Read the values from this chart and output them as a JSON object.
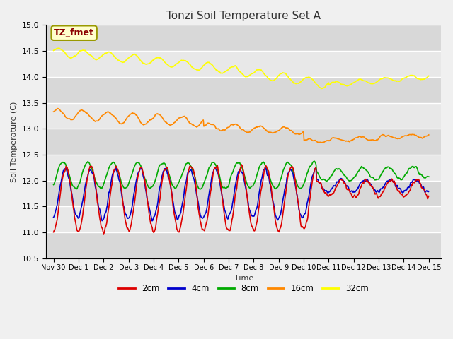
{
  "title": "Tonzi Soil Temperature Set A",
  "xlabel": "Time",
  "ylabel": "Soil Temperature (C)",
  "ylim": [
    10.5,
    15.0
  ],
  "xlim_days": 15.5,
  "background_color": "#f0f0f0",
  "plot_bg_color": "#e8e8e8",
  "annotation_label": "TZ_fmet",
  "annotation_bg": "#ffffcc",
  "annotation_border": "#999900",
  "annotation_text_color": "#8B0000",
  "tick_labels": [
    "Nov 30",
    "Dec 1",
    "Dec 2",
    "Dec 3",
    "Dec 4",
    "Dec 5",
    "Dec 6",
    "Dec 7",
    "Dec 8",
    "Dec 9",
    "Dec 10",
    "Dec 11",
    "Dec 12",
    "Dec 13",
    "Dec 14",
    "Dec 15"
  ],
  "tick_positions": [
    0,
    1,
    2,
    3,
    4,
    5,
    6,
    7,
    8,
    9,
    10,
    11,
    12,
    13,
    14,
    15
  ],
  "legend_entries": [
    "2cm",
    "4cm",
    "8cm",
    "16cm",
    "32cm"
  ],
  "line_colors": {
    "2cm": "#dd0000",
    "4cm": "#0000cc",
    "8cm": "#00aa00",
    "16cm": "#ff8800",
    "32cm": "#ffff00"
  },
  "stripe_colors": [
    "#dcdcdc",
    "#e8e8e8"
  ]
}
